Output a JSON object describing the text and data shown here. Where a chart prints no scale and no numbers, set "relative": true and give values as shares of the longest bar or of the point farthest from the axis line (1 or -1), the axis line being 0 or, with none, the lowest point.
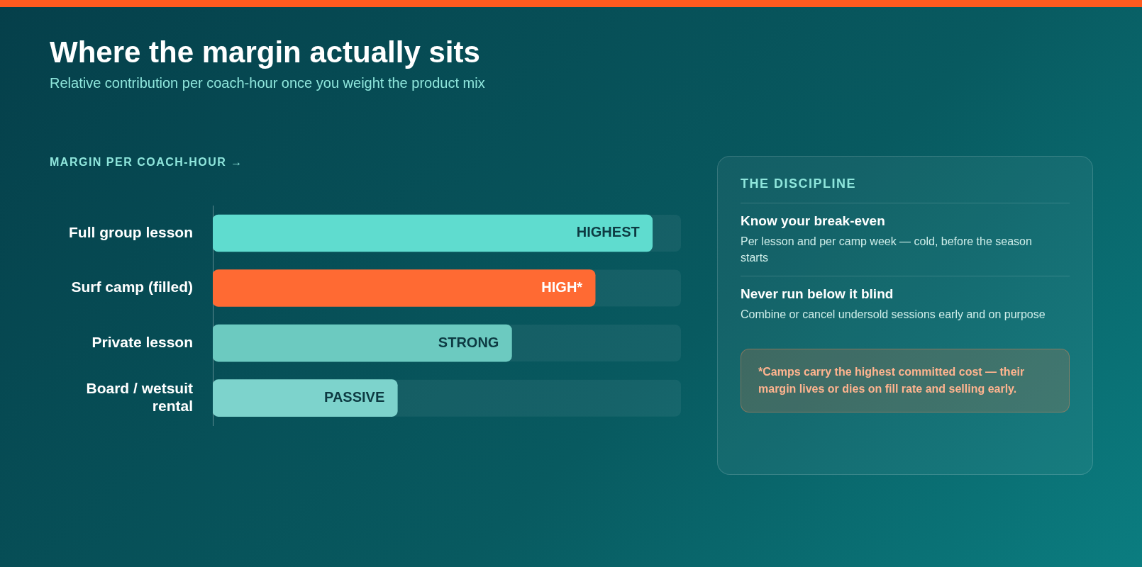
{
  "chart_data": [
    {
      "type": "bar",
      "orientation": "horizontal",
      "relative": true,
      "title": "Where the margin actually sits",
      "subtitle": "Relative contribution per coach-hour once you weight the product mix",
      "xlabel": "MARGIN PER COACH-HOUR →",
      "categories": [
        "Full group lesson",
        "Surf camp (filled)",
        "Private lesson",
        "Board / wetsuit rental"
      ],
      "values": [
        1,
        0.87,
        0.68,
        0.42
      ],
      "colors": [
        "#5fdccf",
        "#ff6a33",
        "#6ccac0",
        "#7dd3cc"
      ],
      "annotations": [
        {
          "text": "HIGHEST",
          "x": 1,
          "y": "Full group lesson"
        },
        {
          "text": "HIGH*",
          "x": 0.87,
          "y": "Surf camp (filled)"
        },
        {
          "text": "STRONG",
          "x": 0.68,
          "y": "Private lesson"
        },
        {
          "text": "PASSIVE",
          "x": 0.42,
          "y": "Board / wetsuit rental"
        }
      ]
    },
    {
      "type": "other",
      "title": "THE DISCIPLINE",
      "annotations": [
        "Know your break-even",
        "Per lesson and per camp week — cold, before the season starts",
        "Never run below it blind",
        "Combine or cancel undersold sessions early and on purpose",
        "*Camps carry the highest committed cost — their margin lives or dies on fill rate and selling early."
      ]
    }
  ]
}
